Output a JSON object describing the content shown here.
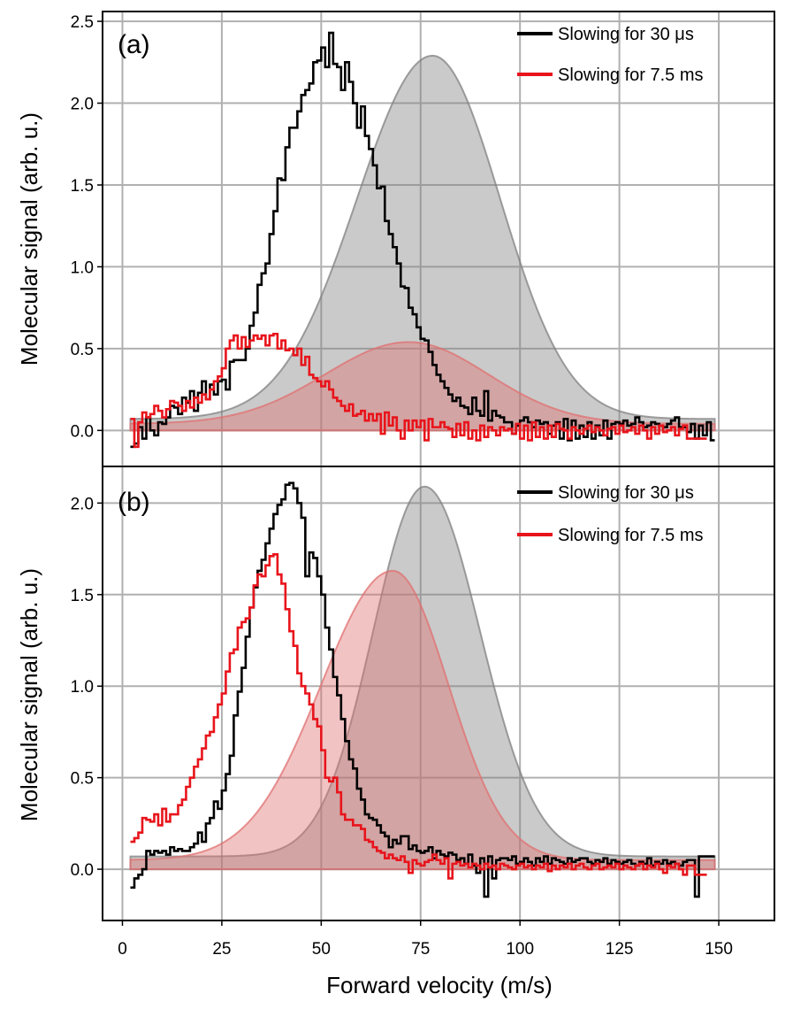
{
  "chart_data": {
    "type": "line",
    "xlabel": "Forward velocity (m/s)",
    "ylabel": "Molecular signal (arb. u.)",
    "xlim": [
      -5,
      164
    ],
    "xticks": [
      0,
      25,
      50,
      75,
      100,
      125,
      150
    ],
    "xtick_labels": [
      "0",
      "25",
      "50",
      "75",
      "100",
      "125",
      "150"
    ],
    "colors": {
      "black": "#000000",
      "red": "#e8141b",
      "grey_fill": "#808080",
      "red_fill": "#e07070",
      "grid": "#b0b0b0"
    },
    "panels": [
      {
        "label": "(a)",
        "ylim": [
          -0.22,
          2.56
        ],
        "yticks": [
          0.0,
          0.5,
          1.0,
          1.5,
          2.0,
          2.5
        ],
        "ytick_labels": [
          "0.0",
          "0.5",
          "1.0",
          "1.5",
          "2.0",
          "2.5"
        ],
        "legend": [
          "Slowing for 30 μs",
          "Slowing for 7.5 ms"
        ],
        "legend_position": "top-right",
        "bin_start": 2,
        "bin_width": 2,
        "series": [
          {
            "name": "Slowing for 30 μs",
            "color": "#000000",
            "values": [
              -0.1,
              -0.08,
              0.02,
              -0.05,
              0.08,
              0.0,
              -0.03,
              0.05,
              0.04,
              0.08,
              0.15,
              0.14,
              0.1,
              0.2,
              0.17,
              0.24,
              0.12,
              0.23,
              0.3,
              0.19,
              0.28,
              0.22,
              0.3,
              0.31,
              0.25,
              0.42,
              0.43,
              0.43,
              0.43,
              0.5,
              0.64,
              0.72,
              0.89,
              0.96,
              1.02,
              1.2,
              1.34,
              1.54,
              1.53,
              1.73,
              1.85,
              1.85,
              1.95,
              2.05,
              2.08,
              2.12,
              2.25,
              2.26,
              2.34,
              2.22,
              2.43,
              2.24,
              2.22,
              2.08,
              2.25,
              2.13,
              2.0,
              1.85,
              1.98,
              1.8,
              1.72,
              1.62,
              1.48,
              1.49,
              1.28,
              1.2,
              1.12,
              1.02,
              0.88,
              0.87,
              0.75,
              0.71,
              0.63,
              0.56,
              0.55,
              0.48,
              0.4,
              0.34,
              0.3,
              0.26,
              0.22,
              0.18,
              0.2,
              0.15,
              0.14,
              0.1,
              0.2,
              0.12,
              0.09,
              0.24,
              0.06,
              0.12,
              0.09,
              0.08,
              0.05,
              0.05,
              -0.02,
              0.03,
              0.06,
              0.08,
              0.05,
              0.02,
              0.06,
              0.04,
              0.05,
              -0.02,
              0.03,
              0.05,
              -0.05,
              0.07,
              -0.06,
              0.06,
              -0.05,
              0.03,
              -0.04,
              0.05,
              -0.05,
              0.03,
              -0.03,
              0.06,
              -0.05,
              0.04,
              0.05,
              0.04,
              0.06,
              0.03,
              0.04,
              0.08,
              0.05,
              0.02,
              0.03,
              0.05,
              0.04,
              0.03,
              0.02,
              0.04,
              0.06,
              0.08,
              0.02,
              0.02,
              -0.01,
              0.04,
              -0.05,
              0.03,
              -0.03,
              0.05,
              -0.06
            ]
          },
          {
            "name": "Slowing for 7.5 ms",
            "color": "#e8141b",
            "values": [
              0.07,
              -0.1,
              0.05,
              0.11,
              0.08,
              0.1,
              0.15,
              0.12,
              0.08,
              0.13,
              0.18,
              0.17,
              0.15,
              0.12,
              0.18,
              0.14,
              0.2,
              0.17,
              0.22,
              0.19,
              0.25,
              0.3,
              0.33,
              0.38,
              0.5,
              0.55,
              0.58,
              0.5,
              0.57,
              0.51,
              0.55,
              0.58,
              0.56,
              0.58,
              0.52,
              0.58,
              0.59,
              0.5,
              0.55,
              0.49,
              0.5,
              0.46,
              0.5,
              0.4,
              0.45,
              0.34,
              0.32,
              0.3,
              0.27,
              0.3,
              0.25,
              0.2,
              0.18,
              0.15,
              0.12,
              0.16,
              0.09,
              0.1,
              0.12,
              0.06,
              0.1,
              0.06,
              0.1,
              -0.02,
              0.11,
              0.03,
              0.08,
              0.0,
              -0.05,
              0.06,
              0.0,
              0.06,
              0.02,
              0.06,
              -0.06,
              0.07,
              0.02,
              0.02,
              0.05,
              0.02,
              0.01,
              -0.04,
              0.04,
              -0.03,
              0.05,
              -0.05,
              0.0,
              -0.06,
              0.03,
              -0.04,
              0.02,
              0.0,
              -0.03,
              0.02,
              0.0,
              0.01,
              -0.02,
              0.04,
              -0.05,
              0.03,
              -0.06,
              0.05,
              -0.04,
              0.02,
              -0.05,
              0.03,
              -0.04,
              0.04,
              0.01,
              0.0,
              -0.05,
              0.02,
              0.0,
              -0.02,
              0.01,
              0.03,
              -0.01,
              0.02,
              0.0,
              -0.03,
              0.01,
              0.02,
              -0.02,
              0.03,
              -0.01,
              0.0,
              0.02,
              -0.02,
              0.03,
              0.0,
              -0.05,
              0.02,
              -0.02,
              0.03,
              -0.01,
              0.0,
              0.02,
              -0.03,
              0.01,
              0.03,
              -0.05,
              -0.05,
              -0.05,
              -0.05,
              -0.05
            ]
          }
        ],
        "fits": [
          {
            "name": "Slowing for 30 μs fit",
            "color": "#808080",
            "center": 78,
            "sigma_left": 19,
            "sigma_right": 17,
            "amplitude": 2.22,
            "baseline": 0.07
          },
          {
            "name": "Slowing for 7.5 ms fit",
            "color": "#e07070",
            "center": 72,
            "sigma_left": 21,
            "sigma_right": 20,
            "amplitude": 0.5,
            "baseline": 0.04
          }
        ]
      },
      {
        "label": "(b)",
        "ylim": [
          -0.28,
          2.2
        ],
        "yticks": [
          0.0,
          0.5,
          1.0,
          1.5,
          2.0
        ],
        "ytick_labels": [
          "0.0",
          "0.5",
          "1.0",
          "1.5",
          "2.0"
        ],
        "legend": [
          "Slowing for 30 μs",
          "Slowing for 7.5 ms"
        ],
        "legend_position": "top-right",
        "bin_start": 2,
        "bin_width": 2,
        "series": [
          {
            "name": "Slowing for 30 μs",
            "color": "#000000",
            "values": [
              -0.1,
              -0.05,
              -0.03,
              0.0,
              0.1,
              0.08,
              0.1,
              0.09,
              0.1,
              0.08,
              0.12,
              0.1,
              0.11,
              0.1,
              0.1,
              0.12,
              0.14,
              0.2,
              0.15,
              0.25,
              0.28,
              0.37,
              0.33,
              0.43,
              0.52,
              0.62,
              0.84,
              0.97,
              1.1,
              1.27,
              1.43,
              1.54,
              1.63,
              1.69,
              1.78,
              1.86,
              1.94,
              1.99,
              2.02,
              2.1,
              2.11,
              2.08,
              2.0,
              1.92,
              1.6,
              1.73,
              1.7,
              1.6,
              1.5,
              1.32,
              1.2,
              1.05,
              0.95,
              0.82,
              0.7,
              0.6,
              0.55,
              0.44,
              0.38,
              0.3,
              0.28,
              0.27,
              0.24,
              0.2,
              0.18,
              0.12,
              0.16,
              0.14,
              0.18,
              0.18,
              0.11,
              0.13,
              0.1,
              0.09,
              0.1,
              0.12,
              0.06,
              0.1,
              0.08,
              0.07,
              0.09,
              0.08,
              0.05,
              0.06,
              0.03,
              0.08,
              0.02,
              -0.02,
              0.06,
              -0.15,
              0.07,
              -0.05,
              0.05,
              0.06,
              0.06,
              0.05,
              0.07,
              0.03,
              0.04,
              0.06,
              0.04,
              0.02,
              0.06,
              0.04,
              0.07,
              0.03,
              0.06,
              0.05,
              0.04,
              0.03,
              0.06,
              0.04,
              0.05,
              0.06,
              0.06,
              0.04,
              0.03,
              0.05,
              0.04,
              0.06,
              0.03,
              0.05,
              0.04,
              0.03,
              0.04,
              0.05,
              0.03,
              0.02,
              0.04,
              0.03,
              0.06,
              0.02,
              0.04,
              0.03,
              0.05,
              0.03,
              0.04,
              0.03,
              0.02,
              0.04,
              0.05,
              0.05,
              -0.15,
              0.07,
              0.07,
              0.07,
              0.07
            ]
          },
          {
            "name": "Slowing for 7.5 ms",
            "color": "#e8141b",
            "values": [
              0.15,
              0.17,
              0.2,
              0.28,
              0.27,
              0.26,
              0.3,
              0.24,
              0.33,
              0.26,
              0.3,
              0.3,
              0.35,
              0.38,
              0.45,
              0.5,
              0.56,
              0.6,
              0.66,
              0.73,
              0.75,
              0.83,
              0.9,
              0.96,
              1.08,
              1.18,
              1.2,
              1.32,
              1.35,
              1.37,
              1.43,
              1.55,
              1.61,
              1.6,
              1.66,
              1.71,
              1.72,
              1.61,
              1.56,
              1.42,
              1.3,
              1.22,
              1.07,
              1.0,
              0.96,
              0.9,
              0.82,
              0.78,
              0.65,
              0.5,
              0.48,
              0.5,
              0.42,
              0.3,
              0.27,
              0.27,
              0.24,
              0.24,
              0.22,
              0.16,
              0.15,
              0.12,
              0.1,
              0.09,
              0.06,
              0.08,
              0.06,
              0.05,
              0.07,
              0.04,
              -0.02,
              0.05,
              0.03,
              0.02,
              0.04,
              0.05,
              0.08,
              0.05,
              0.03,
              0.06,
              -0.05,
              0.03,
              0.04,
              0.02,
              0.03,
              0.01,
              0.03,
              0.02,
              0.0,
              0.03,
              0.01,
              0.02,
              0.0,
              0.03,
              0.02,
              0.01,
              0.0,
              0.02,
              0.03,
              0.01,
              0.02,
              0.0,
              0.02,
              0.01,
              0.03,
              -0.01,
              0.02,
              0.0,
              0.02,
              0.01,
              0.03,
              0.0,
              0.02,
              0.03,
              0.01,
              0.0,
              0.02,
              0.03,
              0.0,
              0.01,
              0.02,
              0.01,
              0.03,
              0.0,
              0.02,
              0.01,
              0.0,
              0.02,
              0.03,
              0.0,
              0.02,
              0.01,
              0.03,
              0.0,
              -0.02,
              0.02,
              0.01,
              0.03,
              0.0,
              -0.03,
              0.02,
              0.02,
              -0.03,
              -0.03,
              -0.03
            ]
          }
        ],
        "fits": [
          {
            "name": "Slowing for 30 μs fit",
            "color": "#808080",
            "center": 76,
            "sigma_left": 13,
            "sigma_right": 14,
            "amplitude": 2.02,
            "baseline": 0.07
          },
          {
            "name": "Slowing for 7.5 ms fit",
            "color": "#e07070",
            "center": 68,
            "sigma_left": 18,
            "sigma_right": 14,
            "amplitude": 1.58,
            "baseline": 0.05
          }
        ]
      }
    ]
  }
}
